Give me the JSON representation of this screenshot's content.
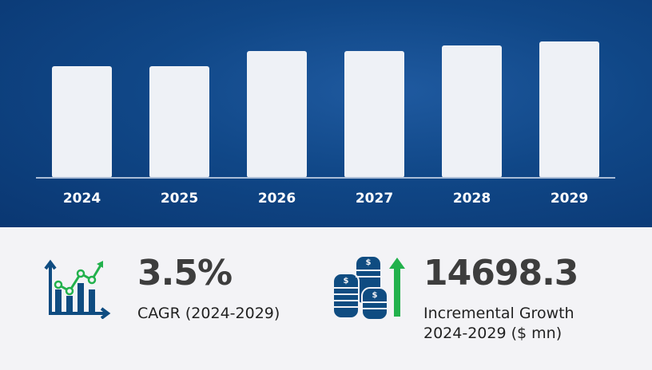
{
  "chart_data": {
    "type": "bar",
    "categories": [
      "2024",
      "2025",
      "2026",
      "2027",
      "2028",
      "2029"
    ],
    "values": [
      140,
      140,
      159,
      159,
      166,
      171
    ],
    "title": "",
    "xlabel": "",
    "ylabel": "",
    "ylim": [
      0,
      171
    ],
    "grid": false,
    "bar_color": "#eef1f6"
  },
  "stats": {
    "cagr_value": "3.5%",
    "cagr_label": "CAGR (2024-2029)",
    "growth_value": "14698.3",
    "growth_label_line1": "Incremental Growth",
    "growth_label_line2": "2024-2029 ($ mn)"
  },
  "colors": {
    "navy": "#0f4c81",
    "green": "#22b14c"
  }
}
